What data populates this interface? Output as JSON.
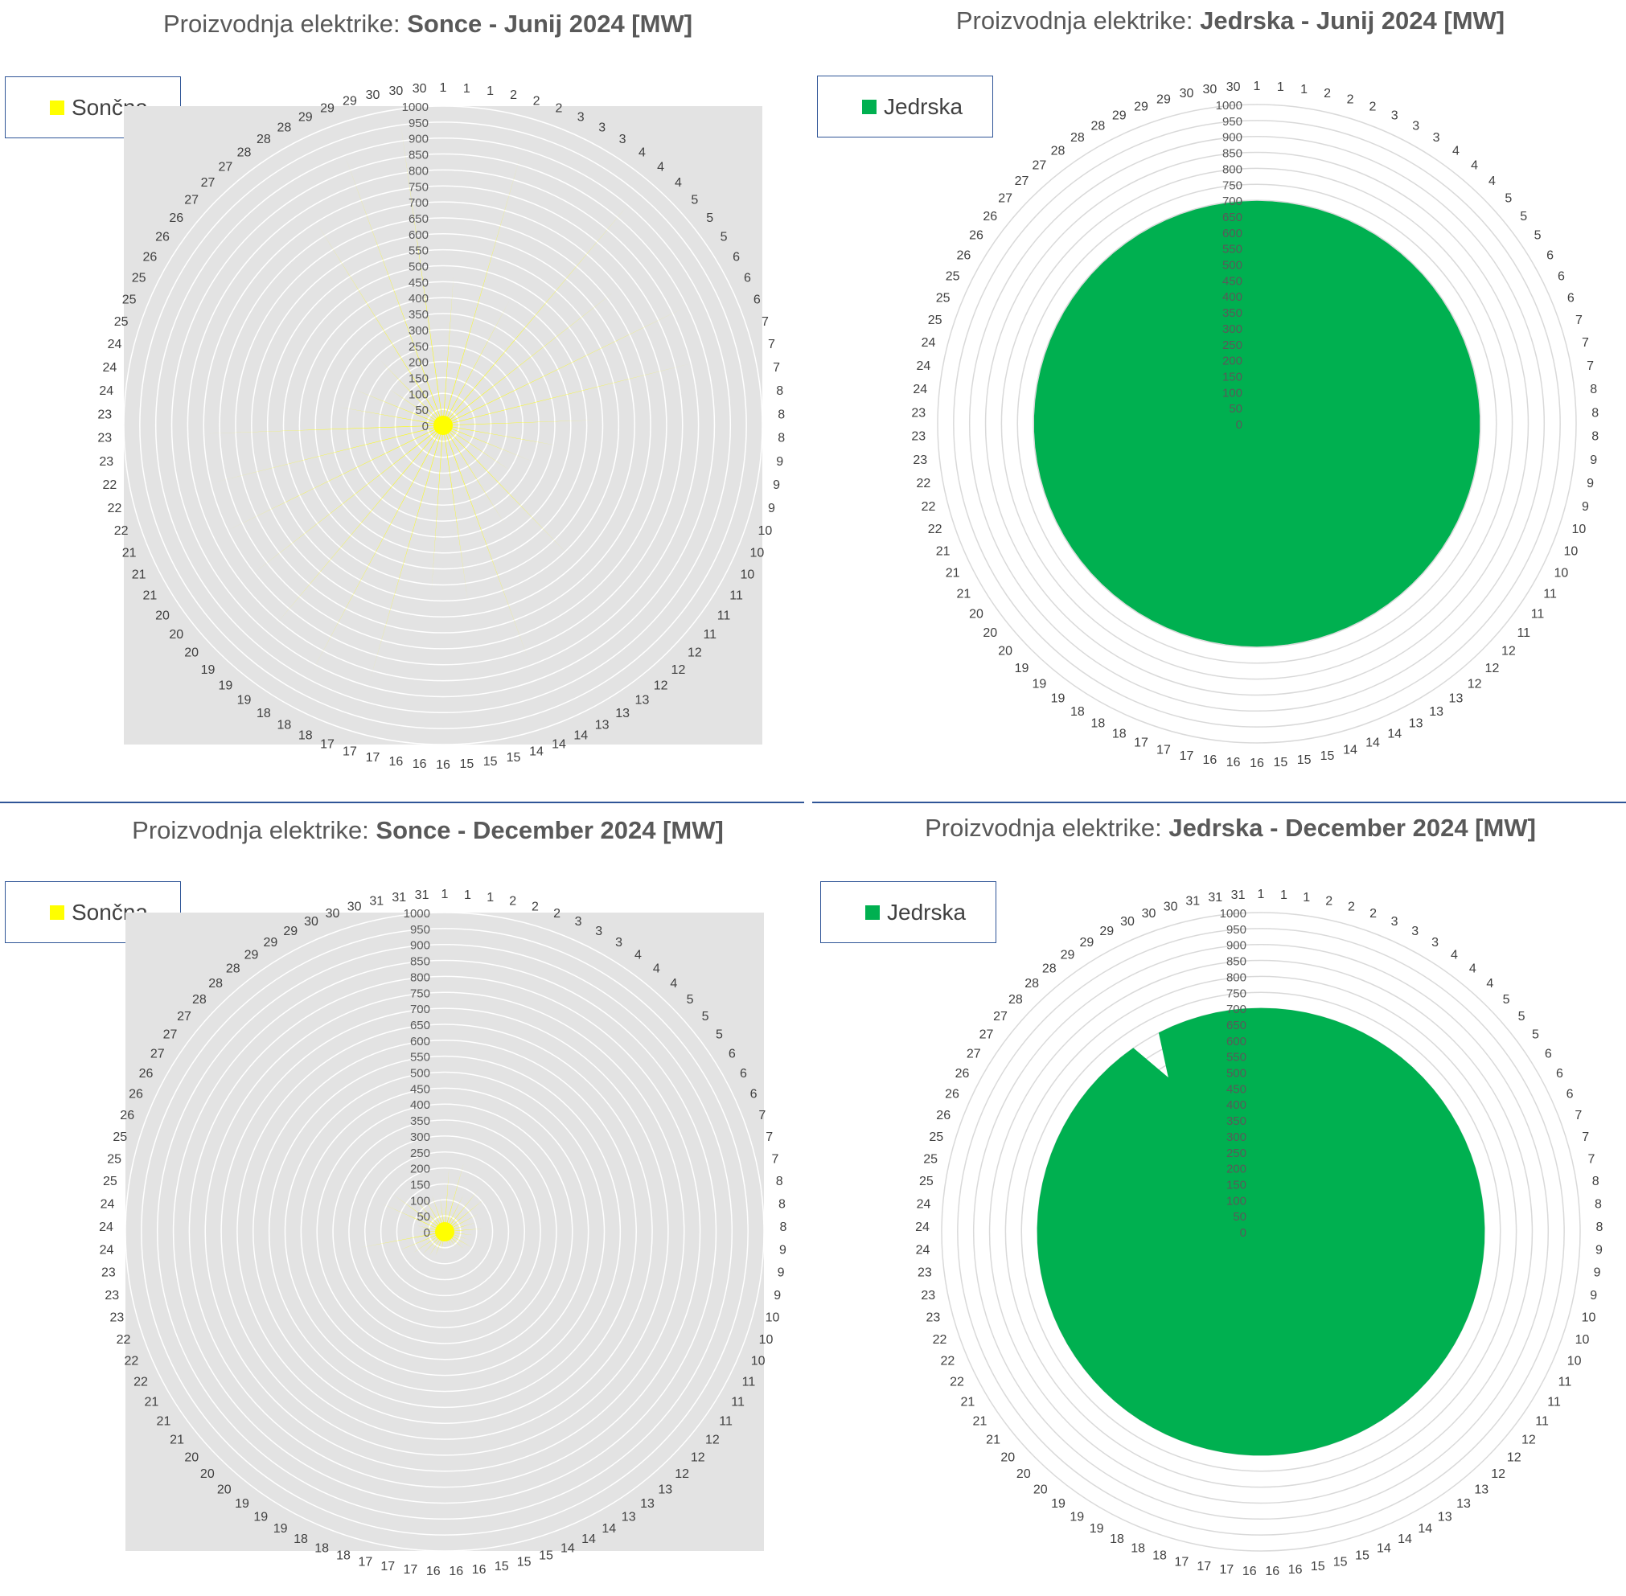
{
  "panels": [
    {
      "title_prefix": "Proizvodnja elektrike: ",
      "title_bold": "Sonce - Junij 2024 [MW]",
      "legend_label": "Sončna",
      "colors": {
        "fill": "#ffff00",
        "plot_bg": "#e3e3e3",
        "grid": "#ffffff"
      },
      "chart_data": {
        "type": "radar",
        "title": "Proizvodnja elektrike: Sonce - Junij 2024 [MW]",
        "series": [
          {
            "name": "Sončna",
            "color": "#ffff00"
          }
        ],
        "days": 30,
        "points_per_day": 3,
        "radial_ticks": [
          "0",
          "50",
          "100",
          "150",
          "200",
          "250",
          "300",
          "350",
          "400",
          "450",
          "500",
          "550",
          "600",
          "650",
          "700",
          "750",
          "800",
          "850",
          "900",
          "950",
          "1000"
        ],
        "rlim": [
          0,
          1000
        ],
        "daily_peak_mw": [
          470,
          880,
          440,
          900,
          720,
          840,
          800,
          480,
          360,
          300,
          250,
          560,
          360,
          780,
          560,
          520,
          830,
          880,
          820,
          760,
          750,
          740,
          790,
          330,
          300,
          200,
          280,
          750,
          900,
          960
        ],
        "grid": true,
        "legend_position": "top-left"
      }
    },
    {
      "title_prefix": "Proizvodnja elektrike: ",
      "title_bold": "Jedrska - Junij 2024 [MW]",
      "legend_label": "Jedrska",
      "colors": {
        "fill": "#00b050",
        "plot_bg": "#ffffff",
        "grid": "#d9d9d9"
      },
      "chart_data": {
        "type": "radar",
        "title": "Proizvodnja elektrike: Jedrska - Junij 2024 [MW]",
        "series": [
          {
            "name": "Jedrska",
            "color": "#00b050"
          }
        ],
        "days": 30,
        "points_per_day": 3,
        "radial_ticks": [
          "0",
          "50",
          "100",
          "150",
          "200",
          "250",
          "300",
          "350",
          "400",
          "450",
          "500",
          "550",
          "600",
          "650",
          "700",
          "750",
          "800",
          "850",
          "900",
          "950",
          "1000"
        ],
        "rlim": [
          0,
          1000
        ],
        "level_mw": 697,
        "dips": [],
        "grid": true,
        "legend_position": "top-left"
      }
    },
    {
      "title_prefix": "Proizvodnja elektrike: ",
      "title_bold": "Sonce - December 2024 [MW]",
      "legend_label": "Sončna",
      "colors": {
        "fill": "#ffff00",
        "plot_bg": "#e3e3e3",
        "grid": "#ffffff"
      },
      "chart_data": {
        "type": "radar",
        "title": "Proizvodnja elektrike: Sonce - December 2024 [MW]",
        "series": [
          {
            "name": "Sončna",
            "color": "#ffff00"
          }
        ],
        "days": 31,
        "points_per_day": 3,
        "radial_ticks": [
          "0",
          "50",
          "100",
          "150",
          "200",
          "250",
          "300",
          "350",
          "400",
          "450",
          "500",
          "550",
          "600",
          "650",
          "700",
          "750",
          "800",
          "850",
          "900",
          "950",
          "1000"
        ],
        "rlim": [
          0,
          1000
        ],
        "daily_peak_mw": [
          200,
          220,
          130,
          170,
          160,
          120,
          100,
          120,
          90,
          80,
          100,
          80,
          60,
          50,
          40,
          30,
          60,
          80,
          90,
          100,
          120,
          150,
          270,
          80,
          90,
          220,
          200,
          150,
          130,
          120,
          110
        ],
        "grid": true,
        "legend_position": "top-left"
      }
    },
    {
      "title_prefix": "Proizvodnja elektrike: ",
      "title_bold": "Jedrska - December 2024 [MW]",
      "legend_label": "Jedrska",
      "colors": {
        "fill": "#00b050",
        "plot_bg": "#ffffff",
        "grid": "#d9d9d9"
      },
      "chart_data": {
        "type": "radar",
        "title": "Proizvodnja elektrike: Jedrska - December 2024 [MW]",
        "series": [
          {
            "name": "Jedrska",
            "color": "#00b050"
          }
        ],
        "days": 31,
        "points_per_day": 3,
        "radial_ticks": [
          "0",
          "50",
          "100",
          "150",
          "200",
          "250",
          "300",
          "350",
          "400",
          "450",
          "500",
          "550",
          "600",
          "650",
          "700",
          "750",
          "800",
          "850",
          "900",
          "950",
          "1000"
        ],
        "rlim": [
          0,
          1000
        ],
        "level_mw": 700,
        "dips": [
          {
            "day": 29,
            "mw": 560
          }
        ],
        "grid": true,
        "legend_position": "top-left"
      }
    }
  ]
}
